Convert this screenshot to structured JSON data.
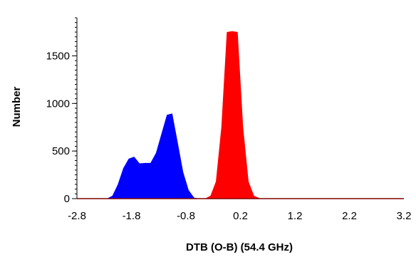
{
  "chart_data": {
    "type": "area",
    "title": "",
    "xlabel": "DTB (O-B) (54.4 GHz)",
    "ylabel": "Number",
    "xlim": [
      -2.8,
      3.2
    ],
    "ylim": [
      0,
      1900
    ],
    "x_ticks": [
      "-2.8",
      "-1.8",
      "-0.8",
      "0.2",
      "1.2",
      "2.2",
      "3.2"
    ],
    "x_tick_values": [
      -2.8,
      -1.8,
      -0.8,
      0.2,
      1.2,
      2.2,
      3.2
    ],
    "y_ticks": [
      "0",
      "500",
      "1000",
      "1500"
    ],
    "y_tick_values": [
      0,
      500,
      1000,
      1500
    ],
    "grid": false,
    "legend": "none",
    "series": [
      {
        "color": "#0000ff",
        "x": [
          -2.8,
          -2.25,
          -2.15,
          -2.05,
          -1.95,
          -1.85,
          -1.75,
          -1.65,
          -1.55,
          -1.45,
          -1.35,
          -1.25,
          -1.15,
          -1.05,
          -0.95,
          -0.85,
          -0.75,
          -0.65,
          -0.55,
          3.2
        ],
        "y": [
          0,
          0,
          30,
          150,
          320,
          420,
          440,
          370,
          375,
          375,
          480,
          680,
          880,
          895,
          590,
          280,
          90,
          10,
          0,
          0
        ]
      },
      {
        "color": "#ff0000",
        "x": [
          -2.8,
          -0.45,
          -0.35,
          -0.25,
          -0.15,
          -0.05,
          0.05,
          0.15,
          0.25,
          0.35,
          0.45,
          0.55,
          0.65,
          3.2
        ],
        "y": [
          0,
          0,
          30,
          180,
          750,
          1750,
          1760,
          1750,
          750,
          180,
          30,
          5,
          0,
          0
        ]
      }
    ],
    "baseline_color": "#800000"
  }
}
